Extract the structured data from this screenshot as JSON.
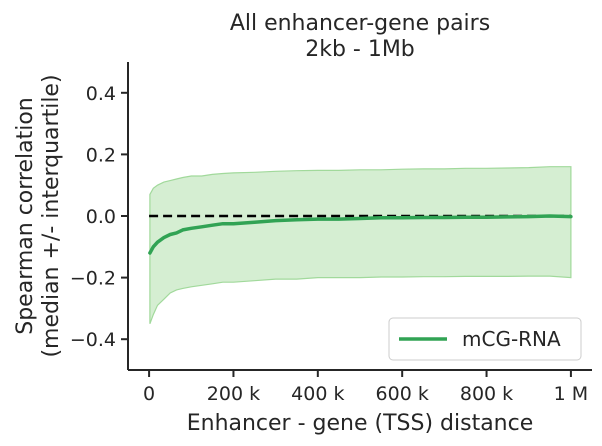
{
  "chart_data": {
    "type": "line",
    "title": [
      "All enhancer-gene pairs",
      "2kb - 1Mb"
    ],
    "xlabel": "Enhancer - gene (TSS) distance",
    "ylabel": [
      "Spearman correlation",
      "(median +/- interquartile)"
    ],
    "xlim": [
      -50000,
      1050000
    ],
    "ylim": [
      -0.5,
      0.5
    ],
    "x_ticks": [
      0,
      200000,
      400000,
      600000,
      800000,
      1000000
    ],
    "x_tick_labels": [
      "0",
      "200 k",
      "400 k",
      "600 k",
      "800 k",
      "1 M"
    ],
    "y_ticks": [
      -0.4,
      -0.2,
      0.0,
      0.2,
      0.4
    ],
    "y_tick_labels": [
      "−0.4",
      "−0.2",
      "0.0",
      "0.2",
      "0.4"
    ],
    "reference_line": {
      "y": 0.0,
      "style": "dashed",
      "color": "#000000"
    },
    "series": [
      {
        "name": "mCG-RNA",
        "color": "#31a354",
        "fill_color": "#a1d99b",
        "x": [
          2000,
          10000,
          20000,
          35000,
          50000,
          65000,
          80000,
          100000,
          125000,
          150000,
          175000,
          200000,
          250000,
          300000,
          350000,
          400000,
          450000,
          500000,
          550000,
          600000,
          650000,
          700000,
          750000,
          800000,
          850000,
          900000,
          950000,
          1000000
        ],
        "median": [
          -0.12,
          -0.1,
          -0.085,
          -0.07,
          -0.06,
          -0.055,
          -0.045,
          -0.04,
          -0.035,
          -0.03,
          -0.025,
          -0.025,
          -0.02,
          -0.015,
          -0.012,
          -0.01,
          -0.01,
          -0.008,
          -0.006,
          -0.006,
          -0.005,
          -0.005,
          -0.004,
          -0.004,
          -0.003,
          -0.002,
          0.0,
          -0.002
        ],
        "lower": [
          -0.35,
          -0.32,
          -0.29,
          -0.27,
          -0.25,
          -0.24,
          -0.235,
          -0.23,
          -0.225,
          -0.22,
          -0.215,
          -0.215,
          -0.21,
          -0.205,
          -0.205,
          -0.2,
          -0.2,
          -0.2,
          -0.198,
          -0.198,
          -0.197,
          -0.197,
          -0.196,
          -0.196,
          -0.196,
          -0.195,
          -0.195,
          -0.2
        ],
        "upper": [
          0.07,
          0.09,
          0.1,
          0.11,
          0.115,
          0.12,
          0.125,
          0.13,
          0.13,
          0.135,
          0.138,
          0.14,
          0.142,
          0.145,
          0.147,
          0.148,
          0.148,
          0.15,
          0.15,
          0.152,
          0.153,
          0.153,
          0.155,
          0.155,
          0.156,
          0.157,
          0.16,
          0.16
        ]
      }
    ],
    "legend": {
      "placement": "lower-right",
      "entries": [
        "mCG-RNA"
      ]
    }
  }
}
